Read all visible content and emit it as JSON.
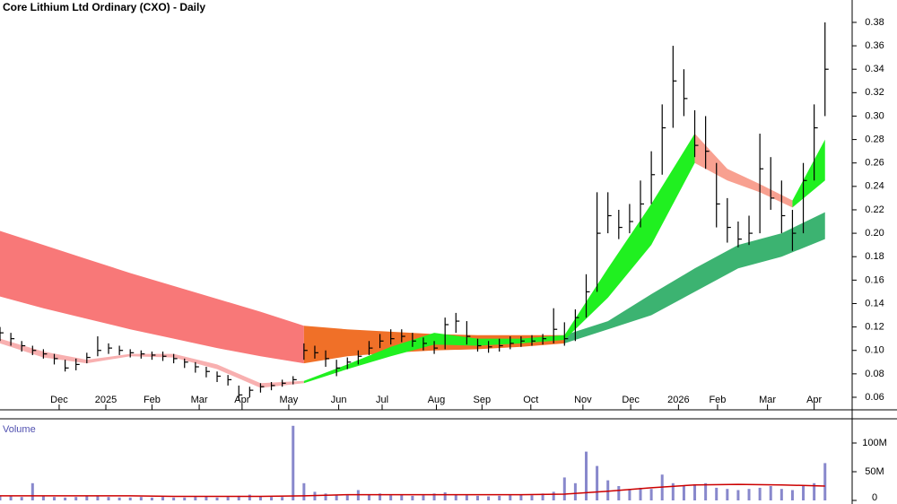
{
  "chart_data": [
    {
      "type": "ohlc",
      "title": "Core Lithium Ltd Ordinary (CXO) - Daily",
      "x": [
        0,
        1,
        2,
        3,
        4,
        5,
        6,
        7,
        8,
        9,
        10,
        11,
        12,
        13,
        14,
        15,
        16,
        17,
        18,
        19,
        20,
        21,
        22,
        23,
        24,
        25,
        26,
        27,
        28,
        29,
        30,
        31,
        32,
        33,
        34,
        35,
        36,
        37,
        38,
        39,
        40,
        41,
        42,
        43,
        44,
        45,
        46,
        47,
        48,
        49,
        50,
        51,
        52,
        53,
        54,
        55,
        56,
        57,
        58,
        59,
        60,
        61,
        62,
        63,
        64,
        65,
        66,
        67,
        68,
        69,
        70,
        71,
        72,
        73,
        74,
        75,
        76
      ],
      "high": [
        0.12,
        0.115,
        0.108,
        0.104,
        0.101,
        0.097,
        0.092,
        0.093,
        0.098,
        0.112,
        0.106,
        0.104,
        0.101,
        0.1,
        0.099,
        0.099,
        0.097,
        0.093,
        0.09,
        0.086,
        0.082,
        0.079,
        0.07,
        0.069,
        0.072,
        0.073,
        0.075,
        0.078,
        0.106,
        0.104,
        0.1,
        0.092,
        0.094,
        0.1,
        0.108,
        0.114,
        0.118,
        0.118,
        0.115,
        0.111,
        0.108,
        0.128,
        0.132,
        0.125,
        0.11,
        0.108,
        0.11,
        0.112,
        0.112,
        0.113,
        0.114,
        0.136,
        0.124,
        0.135,
        0.165,
        0.235,
        0.235,
        0.22,
        0.225,
        0.245,
        0.27,
        0.31,
        0.36,
        0.34,
        0.305,
        0.3,
        0.26,
        0.23,
        0.21,
        0.215,
        0.285,
        0.265,
        0.245,
        0.22,
        0.26,
        0.31,
        0.38
      ],
      "low": [
        0.108,
        0.104,
        0.099,
        0.096,
        0.093,
        0.088,
        0.082,
        0.083,
        0.089,
        0.095,
        0.097,
        0.096,
        0.094,
        0.093,
        0.092,
        0.091,
        0.089,
        0.085,
        0.081,
        0.077,
        0.073,
        0.07,
        0.057,
        0.06,
        0.064,
        0.066,
        0.069,
        0.071,
        0.092,
        0.093,
        0.086,
        0.078,
        0.084,
        0.088,
        0.096,
        0.102,
        0.105,
        0.107,
        0.103,
        0.1,
        0.097,
        0.101,
        0.115,
        0.105,
        0.099,
        0.098,
        0.099,
        0.101,
        0.103,
        0.104,
        0.105,
        0.106,
        0.104,
        0.108,
        0.128,
        0.15,
        0.2,
        0.195,
        0.2,
        0.205,
        0.225,
        0.25,
        0.29,
        0.3,
        0.265,
        0.255,
        0.205,
        0.192,
        0.188,
        0.19,
        0.2,
        0.22,
        0.2,
        0.185,
        0.2,
        0.245,
        0.3
      ],
      "close": [
        0.115,
        0.11,
        0.104,
        0.1,
        0.097,
        0.093,
        0.085,
        0.088,
        0.094,
        0.1,
        0.102,
        0.1,
        0.098,
        0.097,
        0.096,
        0.095,
        0.093,
        0.09,
        0.086,
        0.082,
        0.078,
        0.075,
        0.062,
        0.066,
        0.069,
        0.07,
        0.072,
        0.075,
        0.1,
        0.098,
        0.093,
        0.085,
        0.09,
        0.095,
        0.102,
        0.108,
        0.11,
        0.112,
        0.108,
        0.106,
        0.102,
        0.122,
        0.125,
        0.112,
        0.104,
        0.103,
        0.104,
        0.106,
        0.108,
        0.108,
        0.11,
        0.118,
        0.11,
        0.128,
        0.15,
        0.2,
        0.215,
        0.205,
        0.21,
        0.225,
        0.25,
        0.29,
        0.33,
        0.315,
        0.275,
        0.27,
        0.225,
        0.205,
        0.195,
        0.2,
        0.255,
        0.23,
        0.215,
        0.2,
        0.245,
        0.29,
        0.34
      ],
      "bands": [
        {
          "color": "#f87878",
          "x": [
            0,
            4,
            8,
            12,
            16,
            20,
            24,
            28
          ],
          "upper": [
            0.202,
            0.19,
            0.178,
            0.166,
            0.155,
            0.144,
            0.133,
            0.121
          ],
          "lower": [
            0.146,
            0.136,
            0.127,
            0.118,
            0.11,
            0.102,
            0.095,
            0.089
          ]
        },
        {
          "color": "#f07028",
          "x": [
            28,
            32,
            36,
            40,
            44,
            48,
            52
          ],
          "upper": [
            0.121,
            0.118,
            0.116,
            0.114,
            0.113,
            0.113,
            0.113
          ],
          "lower": [
            0.089,
            0.095,
            0.098,
            0.1,
            0.101,
            0.103,
            0.106
          ]
        },
        {
          "color": "#3cb371",
          "x": [
            52,
            56,
            60,
            64,
            68,
            72,
            76
          ],
          "upper": [
            0.113,
            0.125,
            0.148,
            0.17,
            0.19,
            0.2,
            0.218
          ],
          "lower": [
            0.106,
            0.118,
            0.13,
            0.15,
            0.17,
            0.18,
            0.195
          ]
        },
        {
          "color": "#f8b0b0",
          "x": [
            0,
            4,
            8,
            12,
            16,
            20,
            24,
            28
          ],
          "upper": [
            0.11,
            0.099,
            0.092,
            0.097,
            0.097,
            0.088,
            0.072,
            0.074
          ],
          "lower": [
            0.106,
            0.094,
            0.089,
            0.095,
            0.094,
            0.084,
            0.068,
            0.072
          ]
        },
        {
          "color": "#20f020",
          "x": [
            28,
            32,
            36,
            40,
            44,
            48,
            52,
            56,
            60,
            64
          ],
          "upper": [
            0.074,
            0.088,
            0.103,
            0.115,
            0.11,
            0.11,
            0.113,
            0.17,
            0.225,
            0.285
          ],
          "lower": [
            0.072,
            0.084,
            0.095,
            0.105,
            0.104,
            0.106,
            0.109,
            0.145,
            0.19,
            0.26
          ]
        },
        {
          "color": "#f8a090",
          "x": [
            64,
            67,
            70,
            73
          ],
          "upper": [
            0.285,
            0.255,
            0.242,
            0.228
          ],
          "lower": [
            0.26,
            0.245,
            0.235,
            0.222
          ]
        },
        {
          "color": "#20f020",
          "x": [
            73,
            76
          ],
          "upper": [
            0.228,
            0.28
          ],
          "lower": [
            0.222,
            0.245
          ]
        }
      ],
      "xlim": [
        0,
        78.5
      ],
      "xticks": [
        {
          "value": 5.45,
          "label": "Dec"
        },
        {
          "value": 9.75,
          "label": "2025"
        },
        {
          "value": 14.0,
          "label": "Feb"
        },
        {
          "value": 18.35,
          "label": "Mar"
        },
        {
          "value": 22.3,
          "label": "Apr"
        },
        {
          "value": 26.6,
          "label": "May"
        },
        {
          "value": 31.2,
          "label": "Jun"
        },
        {
          "value": 35.2,
          "label": "Jul"
        },
        {
          "value": 40.2,
          "label": "Aug"
        },
        {
          "value": 44.4,
          "label": "Sep"
        },
        {
          "value": 48.9,
          "label": "Oct"
        },
        {
          "value": 53.7,
          "label": "Nov"
        },
        {
          "value": 58.1,
          "label": "Dec"
        },
        {
          "value": 62.5,
          "label": "2026"
        },
        {
          "value": 66.1,
          "label": "Feb"
        },
        {
          "value": 70.7,
          "label": "Mar"
        },
        {
          "value": 75.0,
          "label": "Apr"
        }
      ],
      "ylim": [
        0.0508,
        0.3991
      ],
      "yticks": [
        {
          "value": 0.06,
          "label": "0.06"
        },
        {
          "value": 0.08,
          "label": "0.08"
        },
        {
          "value": 0.1,
          "label": "0.10"
        },
        {
          "value": 0.12,
          "label": "0.12"
        },
        {
          "value": 0.14,
          "label": "0.14"
        },
        {
          "value": 0.16,
          "label": "0.16"
        },
        {
          "value": 0.18,
          "label": "0.18"
        },
        {
          "value": 0.2,
          "label": "0.20"
        },
        {
          "value": 0.22,
          "label": "0.22"
        },
        {
          "value": 0.24,
          "label": "0.24"
        },
        {
          "value": 0.26,
          "label": "0.26"
        },
        {
          "value": 0.28,
          "label": "0.28"
        },
        {
          "value": 0.3,
          "label": "0.30"
        },
        {
          "value": 0.32,
          "label": "0.32"
        },
        {
          "value": 0.34,
          "label": "0.34"
        },
        {
          "value": 0.36,
          "label": "0.36"
        },
        {
          "value": 0.38,
          "label": "0.38"
        }
      ]
    },
    {
      "type": "bar",
      "title": "Volume",
      "color": "#8888cc",
      "x": [
        0,
        1,
        2,
        3,
        4,
        5,
        6,
        7,
        8,
        9,
        10,
        11,
        12,
        13,
        14,
        15,
        16,
        17,
        18,
        19,
        20,
        21,
        22,
        23,
        24,
        25,
        26,
        27,
        28,
        29,
        30,
        31,
        32,
        33,
        34,
        35,
        36,
        37,
        38,
        39,
        40,
        41,
        42,
        43,
        44,
        45,
        46,
        47,
        48,
        49,
        50,
        51,
        52,
        53,
        54,
        55,
        56,
        57,
        58,
        59,
        60,
        61,
        62,
        63,
        64,
        65,
        66,
        67,
        68,
        69,
        70,
        71,
        72,
        73,
        74,
        75,
        76
      ],
      "values": [
        8000000,
        7000000,
        6000000,
        30000000,
        7000000,
        6000000,
        5000000,
        6000000,
        8000000,
        7000000,
        6000000,
        5000000,
        5000000,
        6000000,
        5000000,
        6000000,
        5000000,
        5000000,
        6000000,
        7000000,
        5000000,
        6000000,
        8000000,
        10000000,
        7000000,
        6000000,
        6000000,
        130000000,
        30000000,
        15000000,
        12000000,
        10000000,
        9000000,
        18000000,
        10000000,
        12000000,
        9000000,
        10000000,
        8000000,
        9000000,
        12000000,
        14000000,
        10000000,
        9000000,
        8000000,
        7000000,
        8000000,
        9000000,
        10000000,
        9000000,
        12000000,
        15000000,
        40000000,
        30000000,
        85000000,
        60000000,
        35000000,
        25000000,
        20000000,
        22000000,
        20000000,
        45000000,
        30000000,
        25000000,
        28000000,
        30000000,
        22000000,
        20000000,
        18000000,
        20000000,
        22000000,
        25000000,
        20000000,
        18000000,
        25000000,
        30000000,
        65000000
      ],
      "line": {
        "color": "#cc0000",
        "x": [
          0,
          4,
          8,
          12,
          16,
          20,
          24,
          28,
          32,
          36,
          40,
          44,
          48,
          52,
          56,
          60,
          64,
          68,
          72,
          76
        ],
        "values": [
          8000000,
          8000000,
          8000000,
          8000000,
          7000000,
          7000000,
          7000000,
          8000000,
          10000000,
          10000000,
          10000000,
          10000000,
          10000000,
          11000000,
          16000000,
          22000000,
          27000000,
          28000000,
          27000000,
          25000000
        ]
      },
      "xlim": [
        0,
        78.5
      ],
      "ylim": [
        0,
        137500000
      ],
      "yticks": [
        0,
        {
          "value": 50000000,
          "label": "50M"
        },
        {
          "value": 100000000,
          "label": "100M"
        }
      ]
    }
  ]
}
